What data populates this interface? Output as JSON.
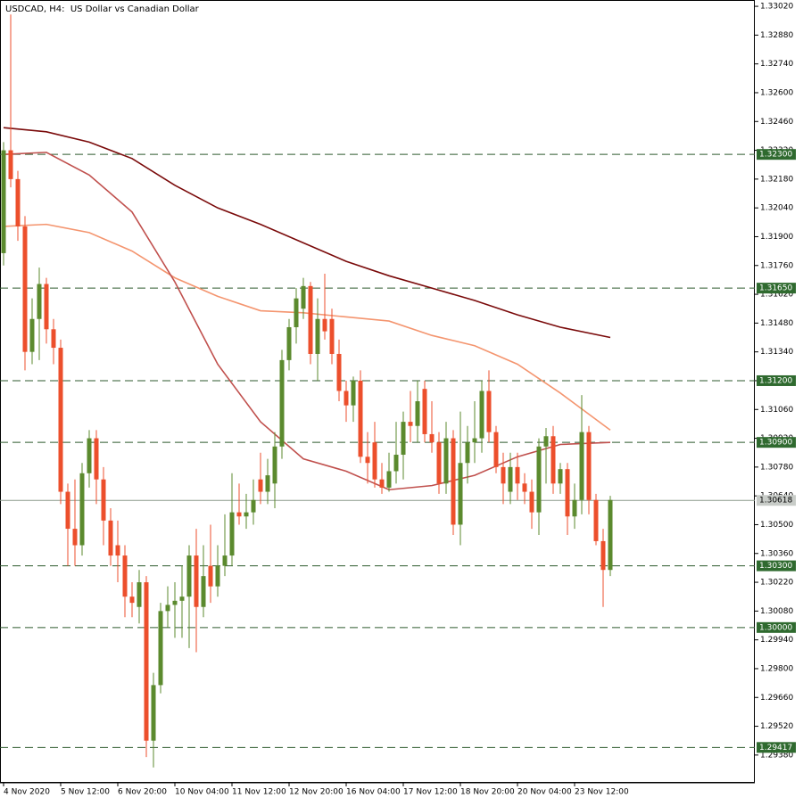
{
  "chart_data": {
    "type": "candlestick",
    "title": "USDCAD, H4:  US Dollar vs Canadian Dollar",
    "categories": [
      "4 Nov 2020",
      null,
      null,
      null,
      null,
      null,
      null,
      null,
      "5 Nov 12:00",
      null,
      null,
      null,
      null,
      null,
      null,
      null,
      "6 Nov 20:00",
      null,
      null,
      null,
      null,
      null,
      null,
      null,
      "10 Nov 04:00",
      null,
      null,
      null,
      null,
      null,
      null,
      null,
      "11 Nov 12:00",
      null,
      null,
      null,
      null,
      null,
      null,
      null,
      "12 Nov 20:00",
      null,
      null,
      null,
      null,
      null,
      null,
      null,
      "16 Nov 04:00",
      null,
      null,
      null,
      null,
      null,
      null,
      null,
      "17 Nov 12:00",
      null,
      null,
      null,
      null,
      null,
      null,
      null,
      "18 Nov 20:00",
      null,
      null,
      null,
      null,
      null,
      null,
      null,
      "20 Nov 04:00",
      null,
      null,
      null,
      null,
      null,
      null,
      null,
      "23 Nov 12:00",
      null,
      null,
      null,
      null,
      null
    ],
    "open": [
      1.3182,
      1.3232,
      1.3218,
      1.3195,
      1.3134,
      1.315,
      1.3167,
      1.3145,
      1.3136,
      1.3066,
      1.3048,
      1.304,
      1.3075,
      1.3092,
      1.3072,
      1.3052,
      1.304,
      1.3035,
      1.3015,
      1.301,
      1.3022,
      1.2945,
      1.2972,
      1.3008,
      1.3011,
      1.3013,
      1.3015,
      1.3035,
      1.301,
      1.303,
      1.302,
      1.303,
      1.3035,
      1.3056,
      1.3054,
      1.3056,
      1.3072,
      1.3066,
      1.307,
      1.3088,
      1.313,
      1.3146,
      1.3155,
      1.3166,
      1.3133,
      1.315,
      1.315,
      1.3133,
      1.3115,
      1.3108,
      1.312,
      1.3083,
      1.309,
      1.3072,
      1.3068,
      1.3076,
      1.3084,
      1.31,
      1.3098,
      1.3116,
      1.3094,
      1.309,
      1.307,
      1.3092,
      1.305,
      1.308,
      1.309,
      1.3092,
      1.3115,
      1.3095,
      1.3078,
      1.3066,
      1.3078,
      1.307,
      1.3066,
      1.3056,
      1.3088,
      1.3093,
      1.307,
      1.3077,
      1.3054,
      1.3062,
      1.3095,
      1.3062,
      1.3042,
      1.3028
    ],
    "high": [
      1.3236,
      1.3298,
      1.3222,
      1.32,
      1.316,
      1.3175,
      1.317,
      1.315,
      1.314,
      1.307,
      1.3072,
      1.308,
      1.3096,
      1.3096,
      1.3078,
      1.3058,
      1.3052,
      1.304,
      1.3022,
      1.3028,
      1.3025,
      1.2978,
      1.3012,
      1.302,
      1.3022,
      1.303,
      1.304,
      1.3048,
      1.304,
      1.305,
      1.304,
      1.3055,
      1.3075,
      1.307,
      1.3065,
      1.3072,
      1.3085,
      1.3082,
      1.3095,
      1.3135,
      1.315,
      1.3165,
      1.317,
      1.3168,
      1.316,
      1.3172,
      1.3155,
      1.314,
      1.312,
      1.3122,
      1.3125,
      1.3095,
      1.31,
      1.308,
      1.3085,
      1.31,
      1.3105,
      1.3115,
      1.312,
      1.312,
      1.311,
      1.3095,
      1.31,
      1.3096,
      1.3105,
      1.3098,
      1.311,
      1.312,
      1.3125,
      1.3098,
      1.3085,
      1.3085,
      1.3085,
      1.3075,
      1.3072,
      1.3092,
      1.3097,
      1.3098,
      1.308,
      1.308,
      1.307,
      1.3113,
      1.3098,
      1.3065,
      1.3048,
      1.3064
    ],
    "low": [
      1.3176,
      1.3214,
      1.3188,
      1.3125,
      1.3128,
      1.313,
      1.3138,
      1.3128,
      1.306,
      1.303,
      1.303,
      1.3035,
      1.3068,
      1.306,
      1.304,
      1.303,
      1.3022,
      1.3005,
      1.3005,
      1.3002,
      1.2937,
      1.2932,
      1.2968,
      1.3,
      1.2995,
      1.2995,
      1.299,
      1.2988,
      1.3005,
      1.3012,
      1.3015,
      1.3025,
      1.303,
      1.305,
      1.3048,
      1.305,
      1.306,
      1.306,
      1.3058,
      1.3082,
      1.3125,
      1.3138,
      1.315,
      1.3128,
      1.312,
      1.314,
      1.3128,
      1.311,
      1.31,
      1.31,
      1.308,
      1.307,
      1.3068,
      1.3065,
      1.3066,
      1.307,
      1.3072,
      1.309,
      1.309,
      1.309,
      1.3085,
      1.3065,
      1.3065,
      1.3045,
      1.304,
      1.307,
      1.308,
      1.3085,
      1.309,
      1.3075,
      1.306,
      1.306,
      1.3062,
      1.306,
      1.3048,
      1.3045,
      1.307,
      1.3065,
      1.3065,
      1.3045,
      1.3048,
      1.3055,
      1.3055,
      1.304,
      1.301,
      1.3025
    ],
    "close": [
      1.3232,
      1.3218,
      1.3195,
      1.3134,
      1.315,
      1.3167,
      1.3145,
      1.3136,
      1.3066,
      1.3048,
      1.304,
      1.3075,
      1.3092,
      1.3072,
      1.3052,
      1.3035,
      1.3035,
      1.3015,
      1.3012,
      1.3022,
      1.2945,
      1.2972,
      1.3008,
      1.3011,
      1.3013,
      1.3015,
      1.3035,
      1.301,
      1.3025,
      1.302,
      1.303,
      1.3035,
      1.3056,
      1.3054,
      1.3056,
      1.3062,
      1.3066,
      1.3074,
      1.3088,
      1.313,
      1.3146,
      1.316,
      1.3166,
      1.3133,
      1.315,
      1.3144,
      1.3133,
      1.3115,
      1.3108,
      1.312,
      1.3083,
      1.308,
      1.3072,
      1.3068,
      1.3076,
      1.3084,
      1.31,
      1.3098,
      1.311,
      1.3094,
      1.309,
      1.307,
      1.3092,
      1.305,
      1.308,
      1.309,
      1.3092,
      1.3115,
      1.3095,
      1.3078,
      1.307,
      1.3078,
      1.307,
      1.3066,
      1.3056,
      1.3088,
      1.3093,
      1.307,
      1.3077,
      1.3054,
      1.3062,
      1.3095,
      1.3062,
      1.3042,
      1.3028,
      1.3062
    ],
    "up_color": "#5b8a2e",
    "down_color": "#ec4f2c",
    "moving_averages": [
      {
        "color": "#7a0a0a",
        "x": [
          0,
          6,
          12,
          18,
          24,
          30,
          36,
          42,
          48,
          54,
          60,
          66,
          72,
          78,
          85
        ],
        "values": [
          1.3243,
          1.3241,
          1.3236,
          1.3228,
          1.3215,
          1.3204,
          1.3196,
          1.3187,
          1.3178,
          1.3171,
          1.3165,
          1.3159,
          1.3152,
          1.3146,
          1.3141
        ]
      },
      {
        "color": "#f4956f",
        "x": [
          0,
          6,
          12,
          18,
          24,
          30,
          36,
          42,
          48,
          54,
          60,
          66,
          72,
          78,
          85
        ],
        "values": [
          1.3195,
          1.3196,
          1.3192,
          1.3183,
          1.317,
          1.3161,
          1.3154,
          1.3153,
          1.3151,
          1.3149,
          1.3142,
          1.3137,
          1.3128,
          1.3114,
          1.3096
        ]
      },
      {
        "color": "#c0504d",
        "x": [
          0,
          6,
          12,
          18,
          24,
          30,
          36,
          42,
          48,
          54,
          60,
          66,
          72,
          78,
          85
        ],
        "values": [
          1.323,
          1.3231,
          1.322,
          1.3202,
          1.3168,
          1.3128,
          1.31,
          1.3082,
          1.3076,
          1.3067,
          1.3069,
          1.3074,
          1.3083,
          1.3089,
          1.309
        ]
      }
    ],
    "levels": [
      {
        "value": 1.323,
        "label": "1.32300"
      },
      {
        "value": 1.3165,
        "label": "1.31650"
      },
      {
        "value": 1.312,
        "label": "1.31200"
      },
      {
        "value": 1.309,
        "label": "1.30900"
      },
      {
        "value": 1.303,
        "label": "1.30300"
      },
      {
        "value": 1.3,
        "label": "1.30000"
      },
      {
        "value": 1.29417,
        "label": "1.29417"
      }
    ],
    "current": {
      "value": 1.30618,
      "label": "1.30618"
    },
    "ylim": [
      1.29245,
      1.33042
    ],
    "yticks": [
      {
        "value": 1.3302,
        "label": "1.33020"
      },
      {
        "value": 1.3288,
        "label": "1.32880"
      },
      {
        "value": 1.3274,
        "label": "1.32740"
      },
      {
        "value": 1.326,
        "label": "1.32600"
      },
      {
        "value": 1.3246,
        "label": "1.32460"
      },
      {
        "value": 1.3232,
        "label": "1.32320"
      },
      {
        "value": 1.3218,
        "label": "1.32180"
      },
      {
        "value": 1.3204,
        "label": "1.32040"
      },
      {
        "value": 1.319,
        "label": "1.31900"
      },
      {
        "value": 1.3176,
        "label": "1.31760"
      },
      {
        "value": 1.3162,
        "label": "1.31620"
      },
      {
        "value": 1.3148,
        "label": "1.31480"
      },
      {
        "value": 1.3134,
        "label": "1.31340"
      },
      {
        "value": 1.312,
        "label": "1.31200"
      },
      {
        "value": 1.3106,
        "label": "1.31060"
      },
      {
        "value": 1.3092,
        "label": "1.30920"
      },
      {
        "value": 1.3078,
        "label": "1.30780"
      },
      {
        "value": 1.3064,
        "label": "1.30640"
      },
      {
        "value": 1.305,
        "label": "1.30500"
      },
      {
        "value": 1.3036,
        "label": "1.30360"
      },
      {
        "value": 1.3022,
        "label": "1.30220"
      },
      {
        "value": 1.3008,
        "label": "1.30080"
      },
      {
        "value": 1.2994,
        "label": "1.29940"
      },
      {
        "value": 1.298,
        "label": "1.29800"
      },
      {
        "value": 1.2966,
        "label": "1.29660"
      },
      {
        "value": 1.2952,
        "label": "1.29520"
      },
      {
        "value": 1.2938,
        "label": "1.29380"
      }
    ]
  }
}
